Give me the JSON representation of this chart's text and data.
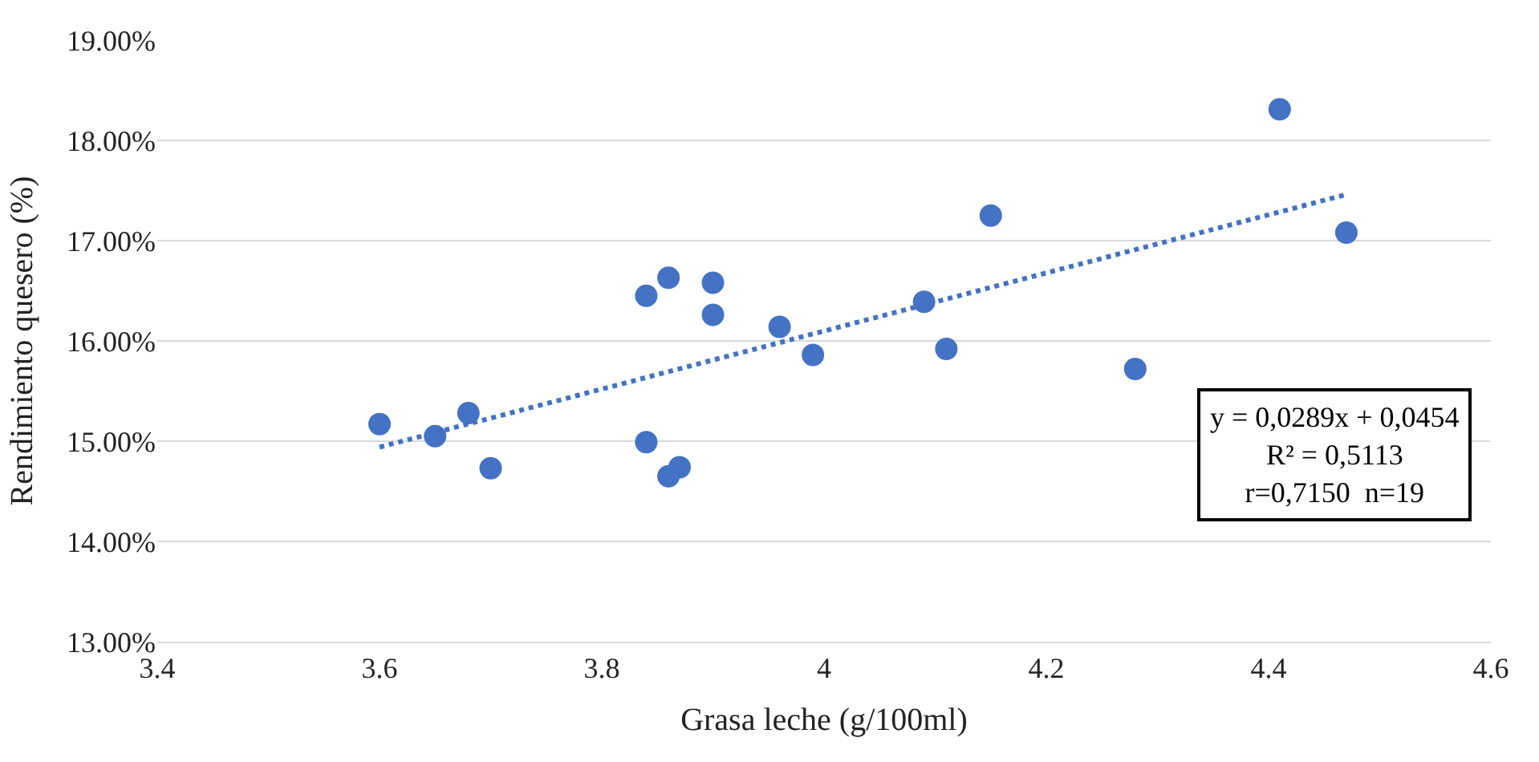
{
  "chart_data": {
    "type": "scatter",
    "xlabel": "Grasa leche (g/100ml)",
    "ylabel": "Rendimiento quesero (%)",
    "series": [
      {
        "color": "#4472c4",
        "marker": "circle",
        "x": [
          3.6,
          3.65,
          3.68,
          3.7,
          3.84,
          3.84,
          3.86,
          3.86,
          3.87,
          3.9,
          3.9,
          3.96,
          3.99,
          4.09,
          4.11,
          4.15,
          4.28,
          4.41,
          4.47
        ],
        "values": [
          15.17,
          15.05,
          15.28,
          14.73,
          16.45,
          14.99,
          16.63,
          14.65,
          14.74,
          16.58,
          16.26,
          16.14,
          15.86,
          16.39,
          15.92,
          17.25,
          15.72,
          18.31,
          17.08
        ]
      },
      {
        "type": "line",
        "color": "#4472c4",
        "line_style": "dotted",
        "marker": "none",
        "x": [
          3.6,
          4.47
        ],
        "values": [
          14.94,
          17.46
        ]
      }
    ],
    "xlim": [
      3.4,
      4.6
    ],
    "xticks": [
      3.4,
      3.6,
      3.8,
      4,
      4.2,
      4.4,
      4.6
    ],
    "ylim": [
      13,
      19
    ],
    "yticks": [
      {
        "value": 13,
        "label": "13.00%"
      },
      {
        "value": 14,
        "label": "14.00%"
      },
      {
        "value": 15,
        "label": "15.00%"
      },
      {
        "value": 16,
        "label": "16.00%"
      },
      {
        "value": 17,
        "label": "17.00%"
      },
      {
        "value": 18,
        "label": "18.00%"
      },
      {
        "value": 19,
        "label": "19.00%"
      }
    ],
    "grid": "y",
    "annotations": [
      "y = 0,0289x + 0,0454\nR² = 0,5113\nr=0,7150  n=19"
    ]
  }
}
